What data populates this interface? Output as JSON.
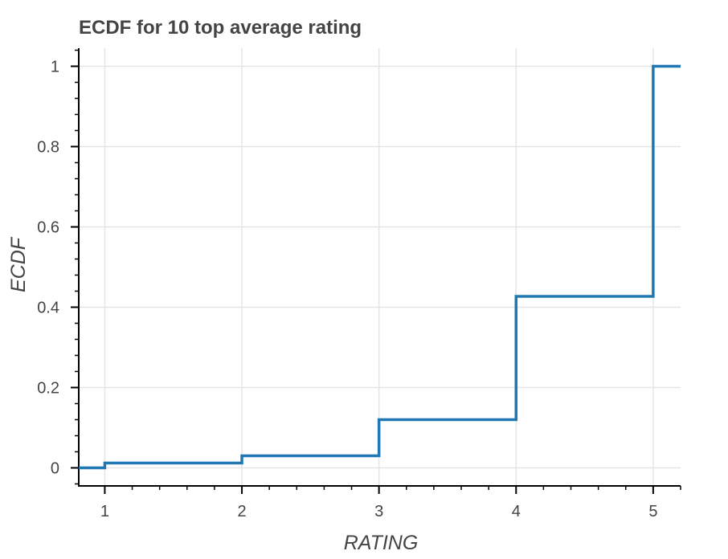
{
  "chart_data": {
    "type": "line",
    "title": "ECDF for 10 top average rating",
    "xlabel": "RATING",
    "ylabel": "ECDF",
    "xlim": [
      0.81,
      5.2
    ],
    "ylim": [
      -0.045,
      1.045
    ],
    "x_ticks": [
      {
        "value": 1,
        "label": "1"
      },
      {
        "value": 2,
        "label": "2"
      },
      {
        "value": 3,
        "label": "3"
      },
      {
        "value": 4,
        "label": "4"
      },
      {
        "value": 5,
        "label": "5"
      }
    ],
    "y_ticks": [
      {
        "value": 0,
        "label": "0"
      },
      {
        "value": 0.2,
        "label": "0.2"
      },
      {
        "value": 0.4,
        "label": "0.4"
      },
      {
        "value": 0.6,
        "label": "0.6"
      },
      {
        "value": 0.8,
        "label": "0.8"
      },
      {
        "value": 1,
        "label": "1"
      }
    ],
    "grid": true,
    "line_color": "#1f77b4",
    "series": [
      {
        "type": "step",
        "x": [
          0.81,
          1,
          2,
          3,
          4,
          5,
          5.2
        ],
        "y": [
          0,
          0.012,
          0.03,
          0.12,
          0.427,
          1,
          1
        ]
      }
    ]
  }
}
